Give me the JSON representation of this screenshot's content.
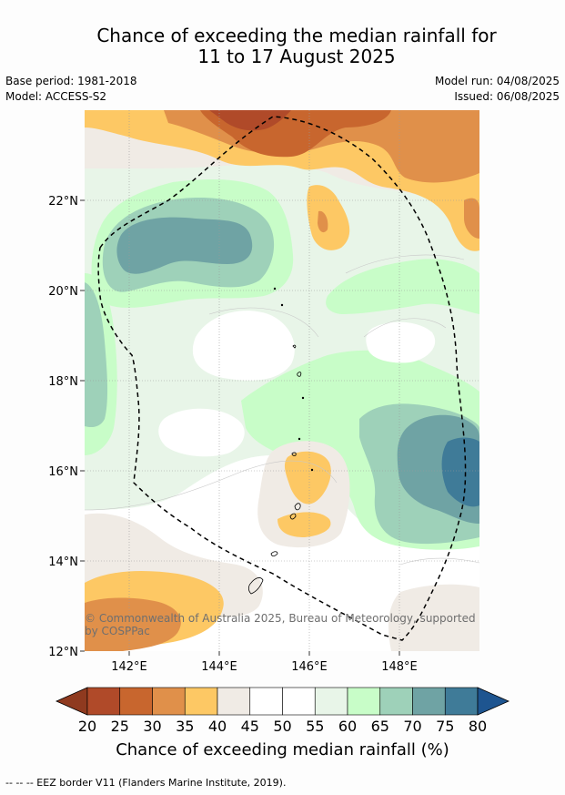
{
  "title": {
    "line1": "Chance of exceeding the median rainfall for",
    "line2": "11 to 17 August 2025"
  },
  "meta": {
    "base_period": "Base period: 1981-2018",
    "model": "Model: ACCESS-S2",
    "model_run": "Model run: 04/08/2025",
    "issued": "Issued: 06/08/2025"
  },
  "map": {
    "lat_labels": [
      "22°N",
      "20°N",
      "18°N",
      "16°N",
      "14°N",
      "12°N"
    ],
    "lon_labels": [
      "142°E",
      "144°E",
      "146°E",
      "148°E"
    ],
    "copyright": "© Commonwealth of Australia 2025, Bureau of Meteorology, supported by COSPPac",
    "eez_style": "dashed",
    "land_outline_color": "#000000"
  },
  "colorbar": {
    "ticks": [
      "20",
      "25",
      "30",
      "35",
      "40",
      "45",
      "50",
      "55",
      "60",
      "65",
      "70",
      "75",
      "80"
    ],
    "colors": {
      "below_20": "#8f3a1f",
      "c20_25": "#b04a29",
      "c25_30": "#c8662e",
      "c30_35": "#e0904a",
      "c35_40": "#fdc864",
      "c40_45": "#f0ebe5",
      "c45_50": "#ffffff",
      "c50_55": "#ffffff",
      "c55_60": "#e8f5e8",
      "c60_65": "#c8fdc8",
      "c65_70": "#9ed1b9",
      "c70_75": "#6fa3a4",
      "c75_80": "#3f7b98",
      "above_80": "#1e5590"
    },
    "label": "Chance of exceeding median rainfall (%)"
  },
  "footnote": "--  --  -- EEZ border V11 (Flanders Marine Institute, 2019)."
}
